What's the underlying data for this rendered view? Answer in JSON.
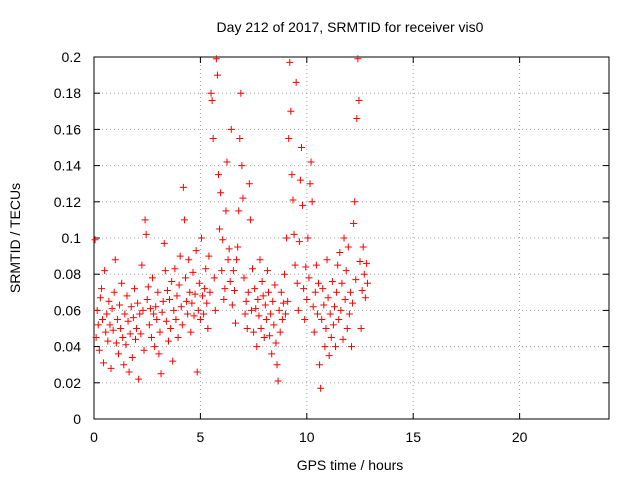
{
  "chart_data": {
    "type": "scatter",
    "title": "Day 212 of 2017, SRMTID for receiver vis0",
    "xlabel": "GPS time / hours",
    "ylabel": "SRMTID / TECUs",
    "xlim": [
      0,
      24.2
    ],
    "ylim": [
      0,
      0.2
    ],
    "xticks": [
      "0",
      "5",
      "10",
      "15",
      "20"
    ],
    "yticks": [
      "0",
      "0.02",
      "0.04",
      "0.06",
      "0.08",
      "0.1",
      "0.12",
      "0.14",
      "0.16",
      "0.18",
      "0.2"
    ],
    "grid": true,
    "marker": "+",
    "color": "#ff0000",
    "series": [
      {
        "points": [
          [
            0.05,
            0.099
          ],
          [
            0.1,
            0.045
          ],
          [
            0.15,
            0.06
          ],
          [
            0.2,
            0.052
          ],
          [
            0.25,
            0.038
          ],
          [
            0.3,
            0.067
          ],
          [
            0.35,
            0.072
          ],
          [
            0.4,
            0.055
          ],
          [
            0.45,
            0.031
          ],
          [
            0.5,
            0.082
          ],
          [
            0.55,
            0.048
          ],
          [
            0.6,
            0.058
          ],
          [
            0.65,
            0.043
          ],
          [
            0.7,
            0.065
          ],
          [
            0.75,
            0.052
          ],
          [
            0.8,
            0.028
          ],
          [
            0.85,
            0.061
          ],
          [
            0.9,
            0.049
          ],
          [
            0.95,
            0.07
          ],
          [
            1.0,
            0.088
          ],
          [
            1.05,
            0.042
          ],
          [
            1.1,
            0.055
          ],
          [
            1.15,
            0.036
          ],
          [
            1.2,
            0.063
          ],
          [
            1.25,
            0.05
          ],
          [
            1.3,
            0.075
          ],
          [
            1.35,
            0.045
          ],
          [
            1.4,
            0.03
          ],
          [
            1.45,
            0.058
          ],
          [
            1.5,
            0.041
          ],
          [
            1.55,
            0.068
          ],
          [
            1.6,
            0.054
          ],
          [
            1.65,
            0.026
          ],
          [
            1.7,
            0.047
          ],
          [
            1.75,
            0.062
          ],
          [
            1.8,
            0.034
          ],
          [
            1.85,
            0.056
          ],
          [
            1.9,
            0.072
          ],
          [
            1.95,
            0.044
          ],
          [
            2.0,
            0.05
          ],
          [
            2.05,
            0.064
          ],
          [
            2.1,
            0.022
          ],
          [
            2.15,
            0.058
          ],
          [
            2.2,
            0.047
          ],
          [
            2.25,
            0.085
          ],
          [
            2.3,
            0.06
          ],
          [
            2.35,
            0.038
          ],
          [
            2.4,
            0.11
          ],
          [
            2.45,
            0.102
          ],
          [
            2.5,
            0.066
          ],
          [
            2.55,
            0.073
          ],
          [
            2.6,
            0.052
          ],
          [
            2.65,
            0.061
          ],
          [
            2.7,
            0.045
          ],
          [
            2.75,
            0.078
          ],
          [
            2.8,
            0.058
          ],
          [
            2.85,
            0.04
          ],
          [
            2.9,
            0.062
          ],
          [
            2.95,
            0.055
          ],
          [
            3.0,
            0.07
          ],
          [
            3.05,
            0.036
          ],
          [
            3.1,
            0.048
          ],
          [
            3.15,
            0.025
          ],
          [
            3.2,
            0.059
          ],
          [
            3.25,
            0.065
          ],
          [
            3.3,
            0.097
          ],
          [
            3.35,
            0.082
          ],
          [
            3.4,
            0.054
          ],
          [
            3.45,
            0.071
          ],
          [
            3.5,
            0.043
          ],
          [
            3.55,
            0.066
          ],
          [
            3.6,
            0.05
          ],
          [
            3.65,
            0.076
          ],
          [
            3.7,
            0.032
          ],
          [
            3.75,
            0.06
          ],
          [
            3.8,
            0.083
          ],
          [
            3.85,
            0.055
          ],
          [
            3.9,
            0.068
          ],
          [
            3.95,
            0.045
          ],
          [
            4.0,
            0.074
          ],
          [
            4.05,
            0.09
          ],
          [
            4.1,
            0.062
          ],
          [
            4.15,
            0.052
          ],
          [
            4.2,
            0.128
          ],
          [
            4.25,
            0.11
          ],
          [
            4.3,
            0.078
          ],
          [
            4.35,
            0.065
          ],
          [
            4.4,
            0.058
          ],
          [
            4.45,
            0.088
          ],
          [
            4.5,
            0.07
          ],
          [
            4.55,
            0.048
          ],
          [
            4.6,
            0.064
          ],
          [
            4.65,
            0.081
          ],
          [
            4.7,
            0.057
          ],
          [
            4.75,
            0.069
          ],
          [
            4.8,
            0.093
          ],
          [
            4.85,
            0.026
          ],
          [
            4.9,
            0.06
          ],
          [
            4.95,
            0.075
          ],
          [
            5.0,
            0.055
          ],
          [
            5.05,
            0.1
          ],
          [
            5.1,
            0.068
          ],
          [
            5.15,
            0.058
          ],
          [
            5.2,
            0.072
          ],
          [
            5.25,
            0.083
          ],
          [
            5.3,
            0.064
          ],
          [
            5.35,
            0.05
          ],
          [
            5.4,
            0.09
          ],
          [
            5.45,
            0.07
          ],
          [
            5.5,
            0.18
          ],
          [
            5.55,
            0.176
          ],
          [
            5.6,
            0.155
          ],
          [
            5.65,
            0.078
          ],
          [
            5.7,
            0.06
          ],
          [
            5.75,
            0.199
          ],
          [
            5.8,
            0.19
          ],
          [
            5.85,
            0.135
          ],
          [
            5.9,
            0.105
          ],
          [
            5.95,
            0.125
          ],
          [
            6.0,
            0.082
          ],
          [
            6.05,
            0.099
          ],
          [
            6.1,
            0.066
          ],
          [
            6.15,
            0.072
          ],
          [
            6.2,
            0.115
          ],
          [
            6.25,
            0.142
          ],
          [
            6.3,
            0.088
          ],
          [
            6.35,
            0.094
          ],
          [
            6.4,
            0.076
          ],
          [
            6.45,
            0.16
          ],
          [
            6.5,
            0.063
          ],
          [
            6.55,
            0.082
          ],
          [
            6.6,
            0.071
          ],
          [
            6.65,
            0.053
          ],
          [
            6.7,
            0.088
          ],
          [
            6.75,
            0.095
          ],
          [
            6.8,
            0.115
          ],
          [
            6.85,
            0.155
          ],
          [
            6.9,
            0.18
          ],
          [
            6.95,
            0.14
          ],
          [
            7.0,
            0.122
          ],
          [
            7.05,
            0.078
          ],
          [
            7.1,
            0.058
          ],
          [
            7.15,
            0.065
          ],
          [
            7.2,
            0.05
          ],
          [
            7.25,
            0.07
          ],
          [
            7.3,
            0.13
          ],
          [
            7.35,
            0.11
          ],
          [
            7.4,
            0.06
          ],
          [
            7.45,
            0.083
          ],
          [
            7.5,
            0.048
          ],
          [
            7.55,
            0.072
          ],
          [
            7.6,
            0.061
          ],
          [
            7.65,
            0.04
          ],
          [
            7.7,
            0.066
          ],
          [
            7.75,
            0.057
          ],
          [
            7.8,
            0.088
          ],
          [
            7.85,
            0.05
          ],
          [
            7.9,
            0.076
          ],
          [
            7.95,
            0.068
          ],
          [
            8.0,
            0.045
          ],
          [
            8.05,
            0.063
          ],
          [
            8.1,
            0.055
          ],
          [
            8.15,
            0.082
          ],
          [
            8.2,
            0.07
          ],
          [
            8.25,
            0.046
          ],
          [
            8.3,
            0.058
          ],
          [
            8.35,
            0.036
          ],
          [
            8.4,
            0.065
          ],
          [
            8.45,
            0.052
          ],
          [
            8.5,
            0.074
          ],
          [
            8.55,
            0.042
          ],
          [
            8.6,
            0.03
          ],
          [
            8.65,
            0.021
          ],
          [
            8.7,
            0.06
          ],
          [
            8.75,
            0.048
          ],
          [
            8.8,
            0.07
          ],
          [
            8.85,
            0.055
          ],
          [
            8.9,
            0.064
          ],
          [
            8.95,
            0.08
          ],
          [
            9.0,
            0.058
          ],
          [
            9.05,
            0.1
          ],
          [
            9.1,
            0.065
          ],
          [
            9.15,
            0.155
          ],
          [
            9.2,
            0.197
          ],
          [
            9.25,
            0.17
          ],
          [
            9.3,
            0.135
          ],
          [
            9.35,
            0.121
          ],
          [
            9.4,
            0.102
          ],
          [
            9.45,
            0.085
          ],
          [
            9.5,
            0.186
          ],
          [
            9.55,
            0.075
          ],
          [
            9.6,
            0.06
          ],
          [
            9.65,
            0.098
          ],
          [
            9.7,
            0.132
          ],
          [
            9.75,
            0.15
          ],
          [
            9.8,
            0.118
          ],
          [
            9.85,
            0.072
          ],
          [
            9.9,
            0.055
          ],
          [
            9.95,
            0.084
          ],
          [
            10.0,
            0.066
          ],
          [
            10.05,
            0.1
          ],
          [
            10.1,
            0.078
          ],
          [
            10.15,
            0.13
          ],
          [
            10.2,
            0.142
          ],
          [
            10.25,
            0.12
          ],
          [
            10.3,
            0.062
          ],
          [
            10.35,
            0.048
          ],
          [
            10.4,
            0.07
          ],
          [
            10.45,
            0.085
          ],
          [
            10.5,
            0.058
          ],
          [
            10.55,
            0.075
          ],
          [
            10.6,
            0.03
          ],
          [
            10.65,
            0.017
          ],
          [
            10.7,
            0.055
          ],
          [
            10.75,
            0.072
          ],
          [
            10.8,
            0.063
          ],
          [
            10.85,
            0.04
          ],
          [
            10.9,
            0.05
          ],
          [
            10.95,
            0.088
          ],
          [
            11.0,
            0.067
          ],
          [
            11.05,
            0.035
          ],
          [
            11.1,
            0.058
          ],
          [
            11.15,
            0.045
          ],
          [
            11.2,
            0.076
          ],
          [
            11.25,
            0.052
          ],
          [
            11.3,
            0.062
          ],
          [
            11.35,
            0.04
          ],
          [
            11.4,
            0.07
          ],
          [
            11.45,
            0.085
          ],
          [
            11.5,
            0.055
          ],
          [
            11.55,
            0.092
          ],
          [
            11.6,
            0.06
          ],
          [
            11.65,
            0.075
          ],
          [
            11.7,
            0.044
          ],
          [
            11.75,
            0.1
          ],
          [
            11.8,
            0.066
          ],
          [
            11.85,
            0.082
          ],
          [
            11.9,
            0.05
          ],
          [
            11.95,
            0.095
          ],
          [
            12.0,
            0.058
          ],
          [
            12.05,
            0.07
          ],
          [
            12.1,
            0.04
          ],
          [
            12.15,
            0.064
          ],
          [
            12.2,
            0.108
          ],
          [
            12.25,
            0.12
          ],
          [
            12.3,
            0.077
          ],
          [
            12.35,
            0.166
          ],
          [
            12.4,
            0.199
          ],
          [
            12.45,
            0.176
          ],
          [
            12.5,
            0.087
          ],
          [
            12.55,
            0.05
          ],
          [
            12.6,
            0.071
          ],
          [
            12.65,
            0.095
          ],
          [
            12.7,
            0.08
          ],
          [
            12.75,
            0.067
          ],
          [
            12.8,
            0.086
          ],
          [
            12.85,
            0.075
          ]
        ]
      }
    ]
  }
}
